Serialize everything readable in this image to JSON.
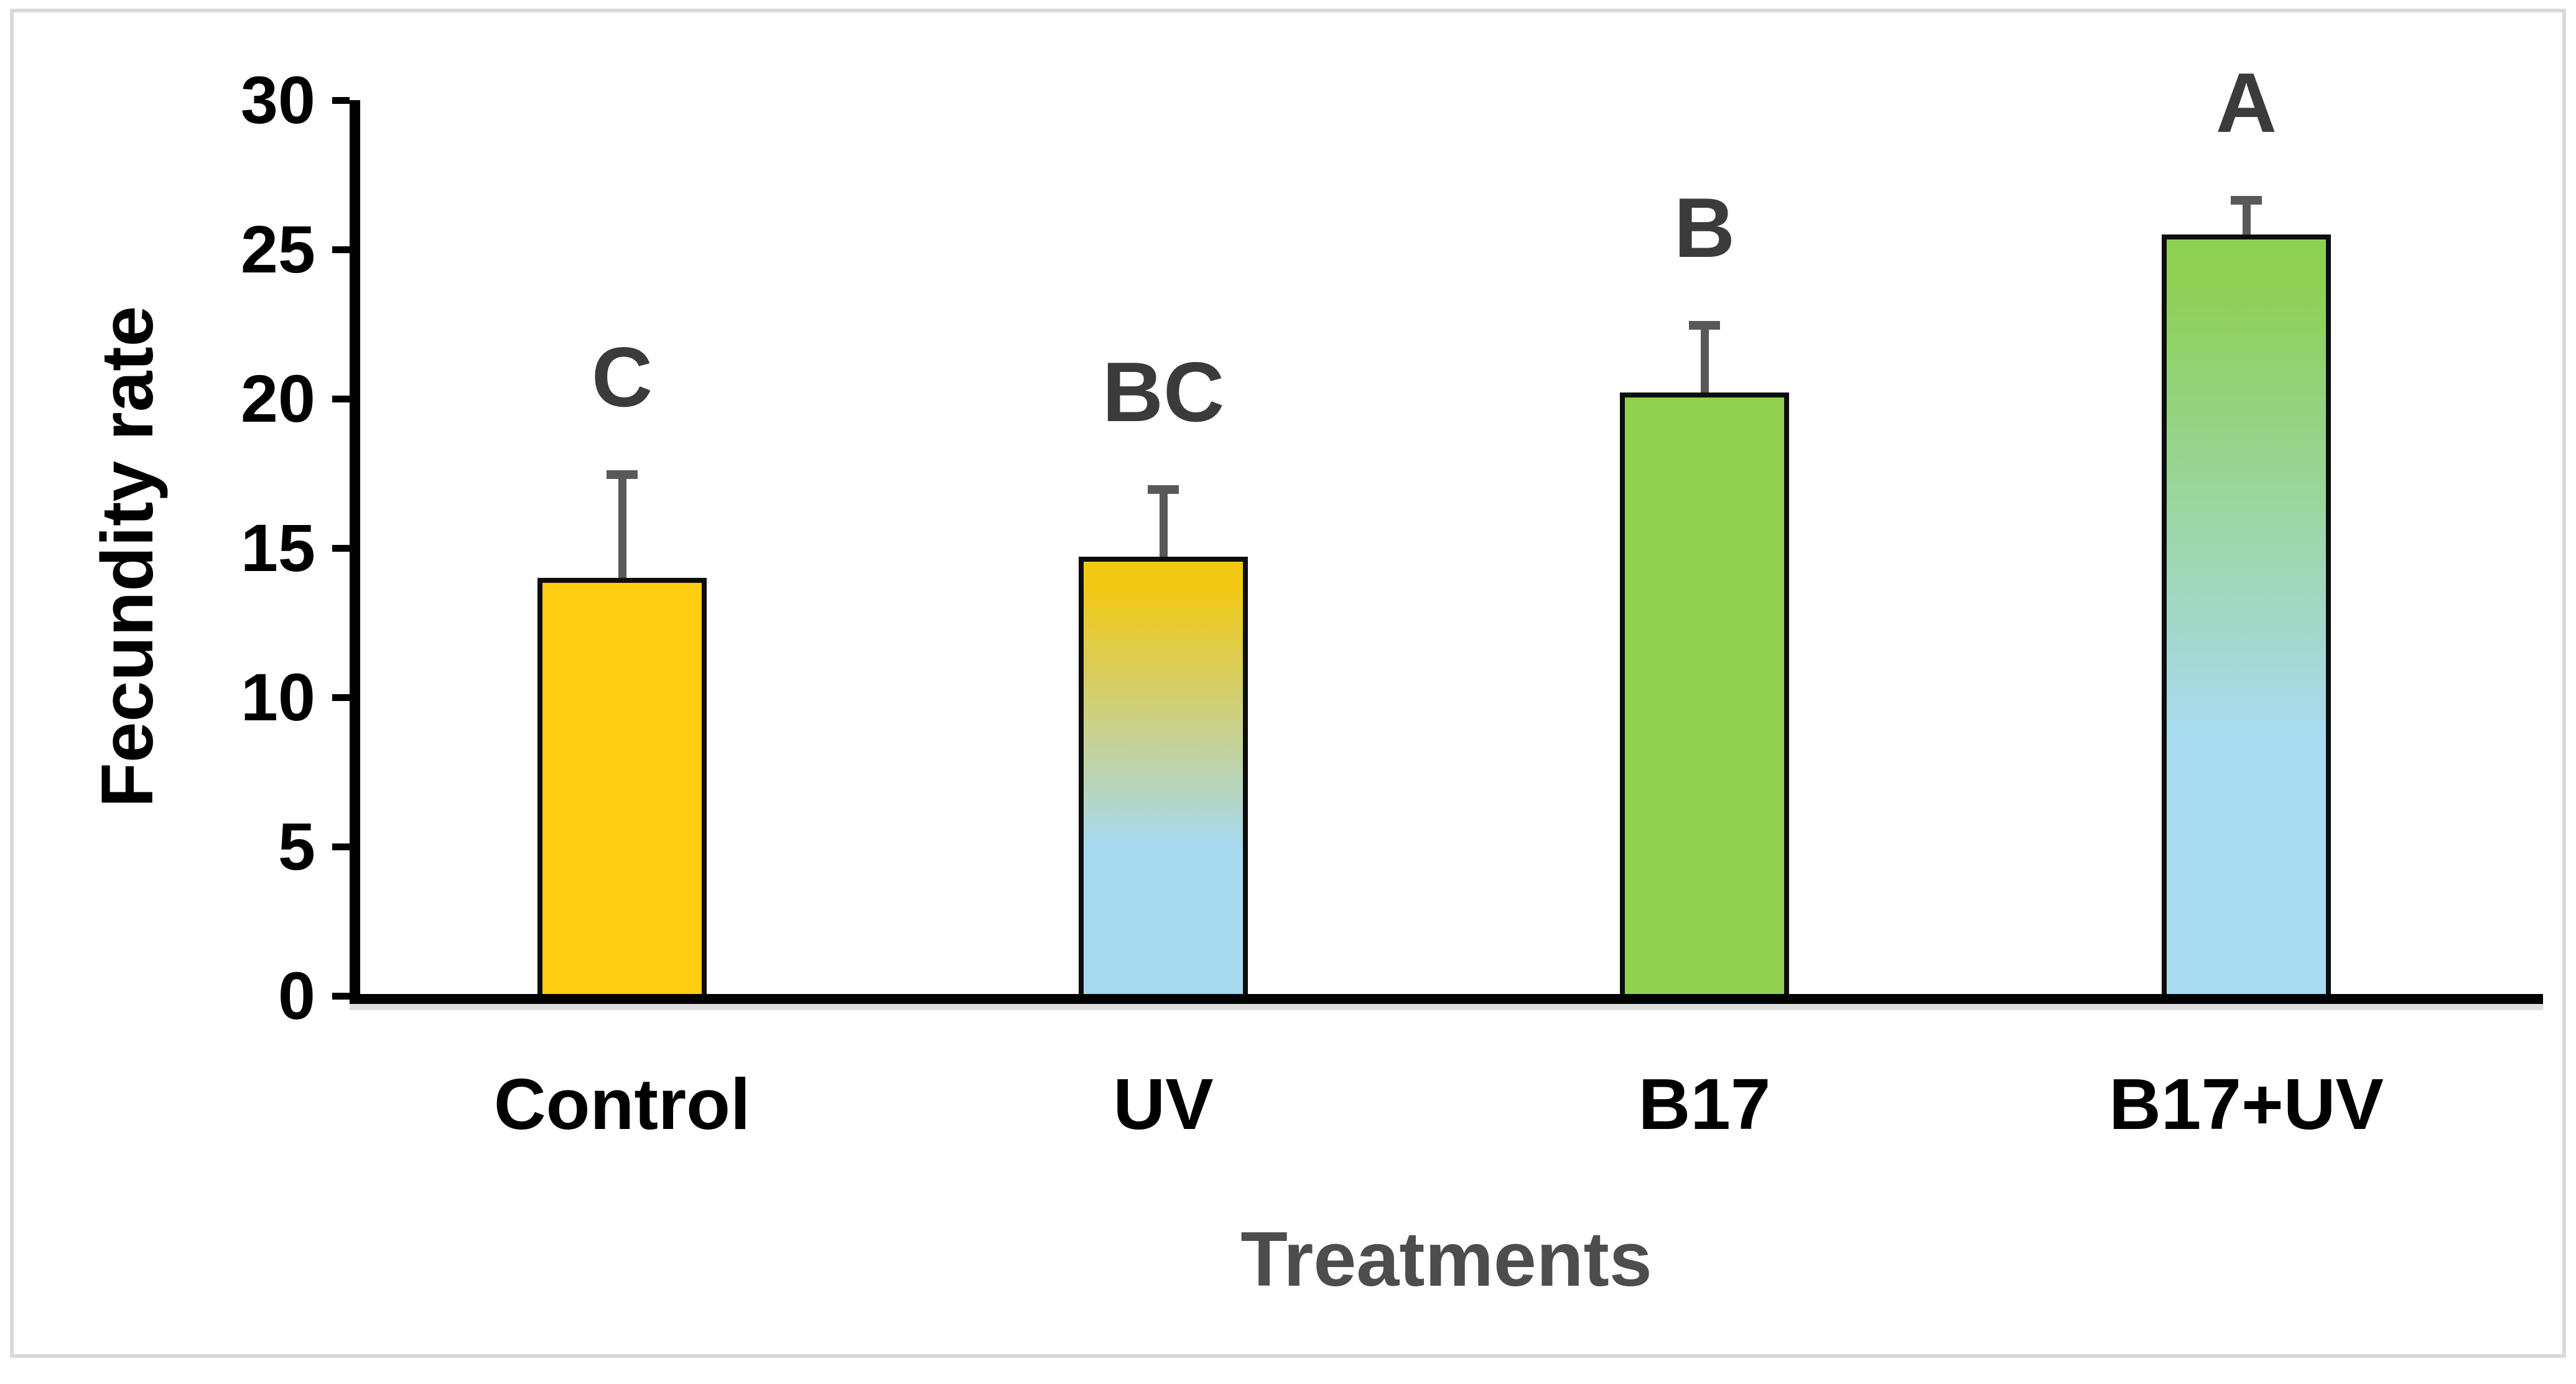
{
  "figure": {
    "background": "#FFFFFF",
    "frame_border_color": "#D9D9D9"
  },
  "chart_data": {
    "type": "bar",
    "title": "",
    "xlabel": "Treatments",
    "ylabel": "Fecundity rate",
    "categories": [
      "Control",
      "UV",
      "B17",
      "B17+UV"
    ],
    "values": [
      14.0,
      14.7,
      20.2,
      25.5
    ],
    "error_upper": [
      3.6,
      2.4,
      2.4,
      1.3
    ],
    "sig_letters": [
      "C",
      "BC",
      "B",
      "A"
    ],
    "ylim": [
      0,
      30
    ],
    "yticks": [
      0,
      5,
      10,
      15,
      20,
      25,
      30
    ],
    "grid": false,
    "legend": "none",
    "bar_fills": [
      {
        "type": "solid",
        "color": "#FFCD11"
      },
      {
        "type": "gradient",
        "from": "#F2C813",
        "to": "#A6D9F0"
      },
      {
        "type": "solid",
        "color": "#92D050"
      },
      {
        "type": "gradient",
        "from": "#8ED054",
        "to": "#A9DBF1"
      }
    ],
    "bar_border_color": "#0D0D0D",
    "error_bar_color": "#595959",
    "letter_color": "#3B3B3B",
    "axis_color": "#000000",
    "xlabel_color": "#4D4D4D",
    "ylabel_color": "#000000"
  }
}
